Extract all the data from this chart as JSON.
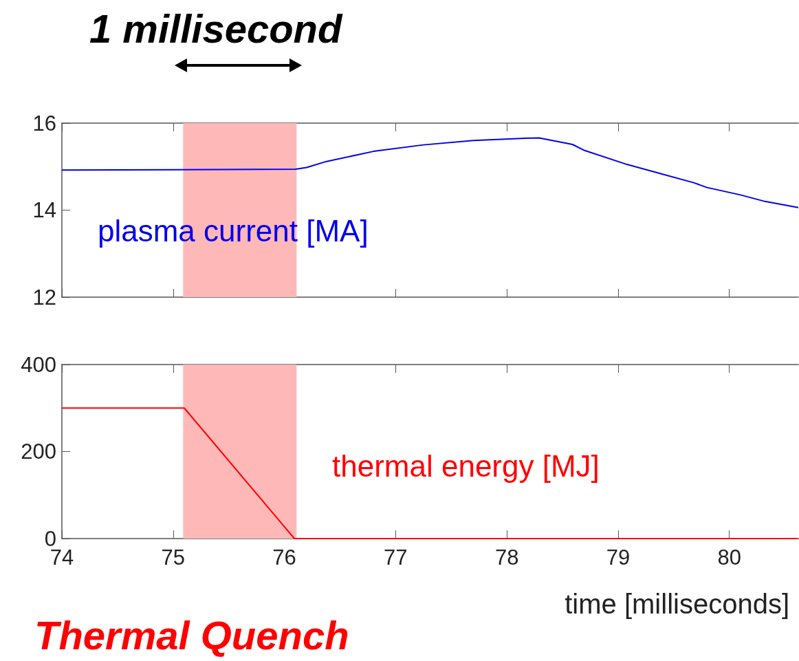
{
  "chart_data": [
    {
      "type": "line",
      "annotations": [
        "1 millisecond"
      ],
      "series": [
        {
          "name": "plasma current [MA]",
          "color": "#0000ee",
          "x": [
            74,
            76.1,
            76.2,
            76.38,
            76.8,
            77.25,
            77.7,
            78.13,
            78.29,
            78.59,
            78.69,
            79.08,
            79.68,
            79.8,
            80.1,
            80.32,
            80.62
          ],
          "values": [
            14.92,
            14.94,
            14.98,
            15.12,
            15.35,
            15.5,
            15.6,
            15.65,
            15.66,
            15.51,
            15.38,
            15.05,
            14.63,
            14.52,
            14.35,
            14.2,
            14.06
          ]
        }
      ],
      "xlim": [
        74,
        80.62
      ],
      "xticks": [
        74,
        75,
        76,
        77,
        78,
        79,
        80
      ],
      "ylim": [
        12,
        16
      ],
      "yticks": [
        12,
        14,
        16
      ],
      "tick_labels": "y",
      "bands": [
        {
          "axis": "x",
          "from": 75.09,
          "to": 76.11,
          "color": "#ffb8b8"
        }
      ]
    },
    {
      "type": "line",
      "xlabel": "time [milliseconds]",
      "series": [
        {
          "name": "thermal energy [MJ]",
          "color": "#ff0000",
          "x": [
            74,
            75.1,
            76.09,
            80.62
          ],
          "values": [
            300,
            300,
            0,
            0
          ]
        }
      ],
      "xlim": [
        74,
        80.62
      ],
      "xticks": [
        74,
        75,
        76,
        77,
        78,
        79,
        80
      ],
      "ylim": [
        0,
        400
      ],
      "yticks": [
        0,
        200,
        400
      ],
      "bands": [
        {
          "axis": "x",
          "from": 75.09,
          "to": 76.11,
          "color": "#ffb8b8",
          "label": "Thermal Quench"
        }
      ]
    }
  ]
}
